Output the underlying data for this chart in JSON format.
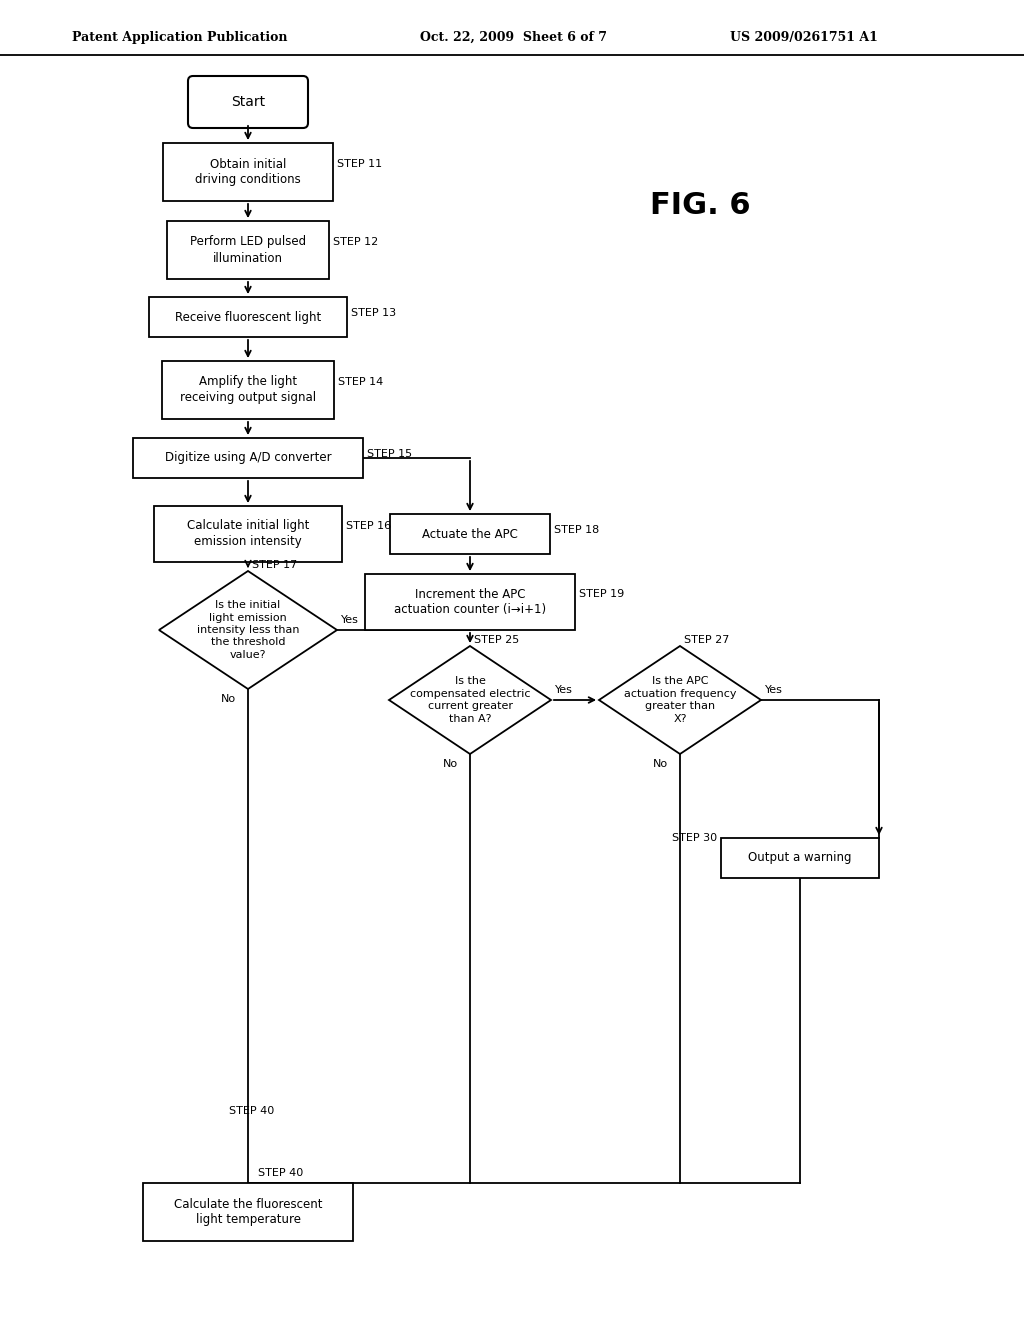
{
  "title_header": "Patent Application Publication",
  "date": "Oct. 22, 2009  Sheet 6 of 7",
  "patent_num": "US 2009/0261751 A1",
  "fig_label": "FIG. 6",
  "bg_color": "#ffffff"
}
